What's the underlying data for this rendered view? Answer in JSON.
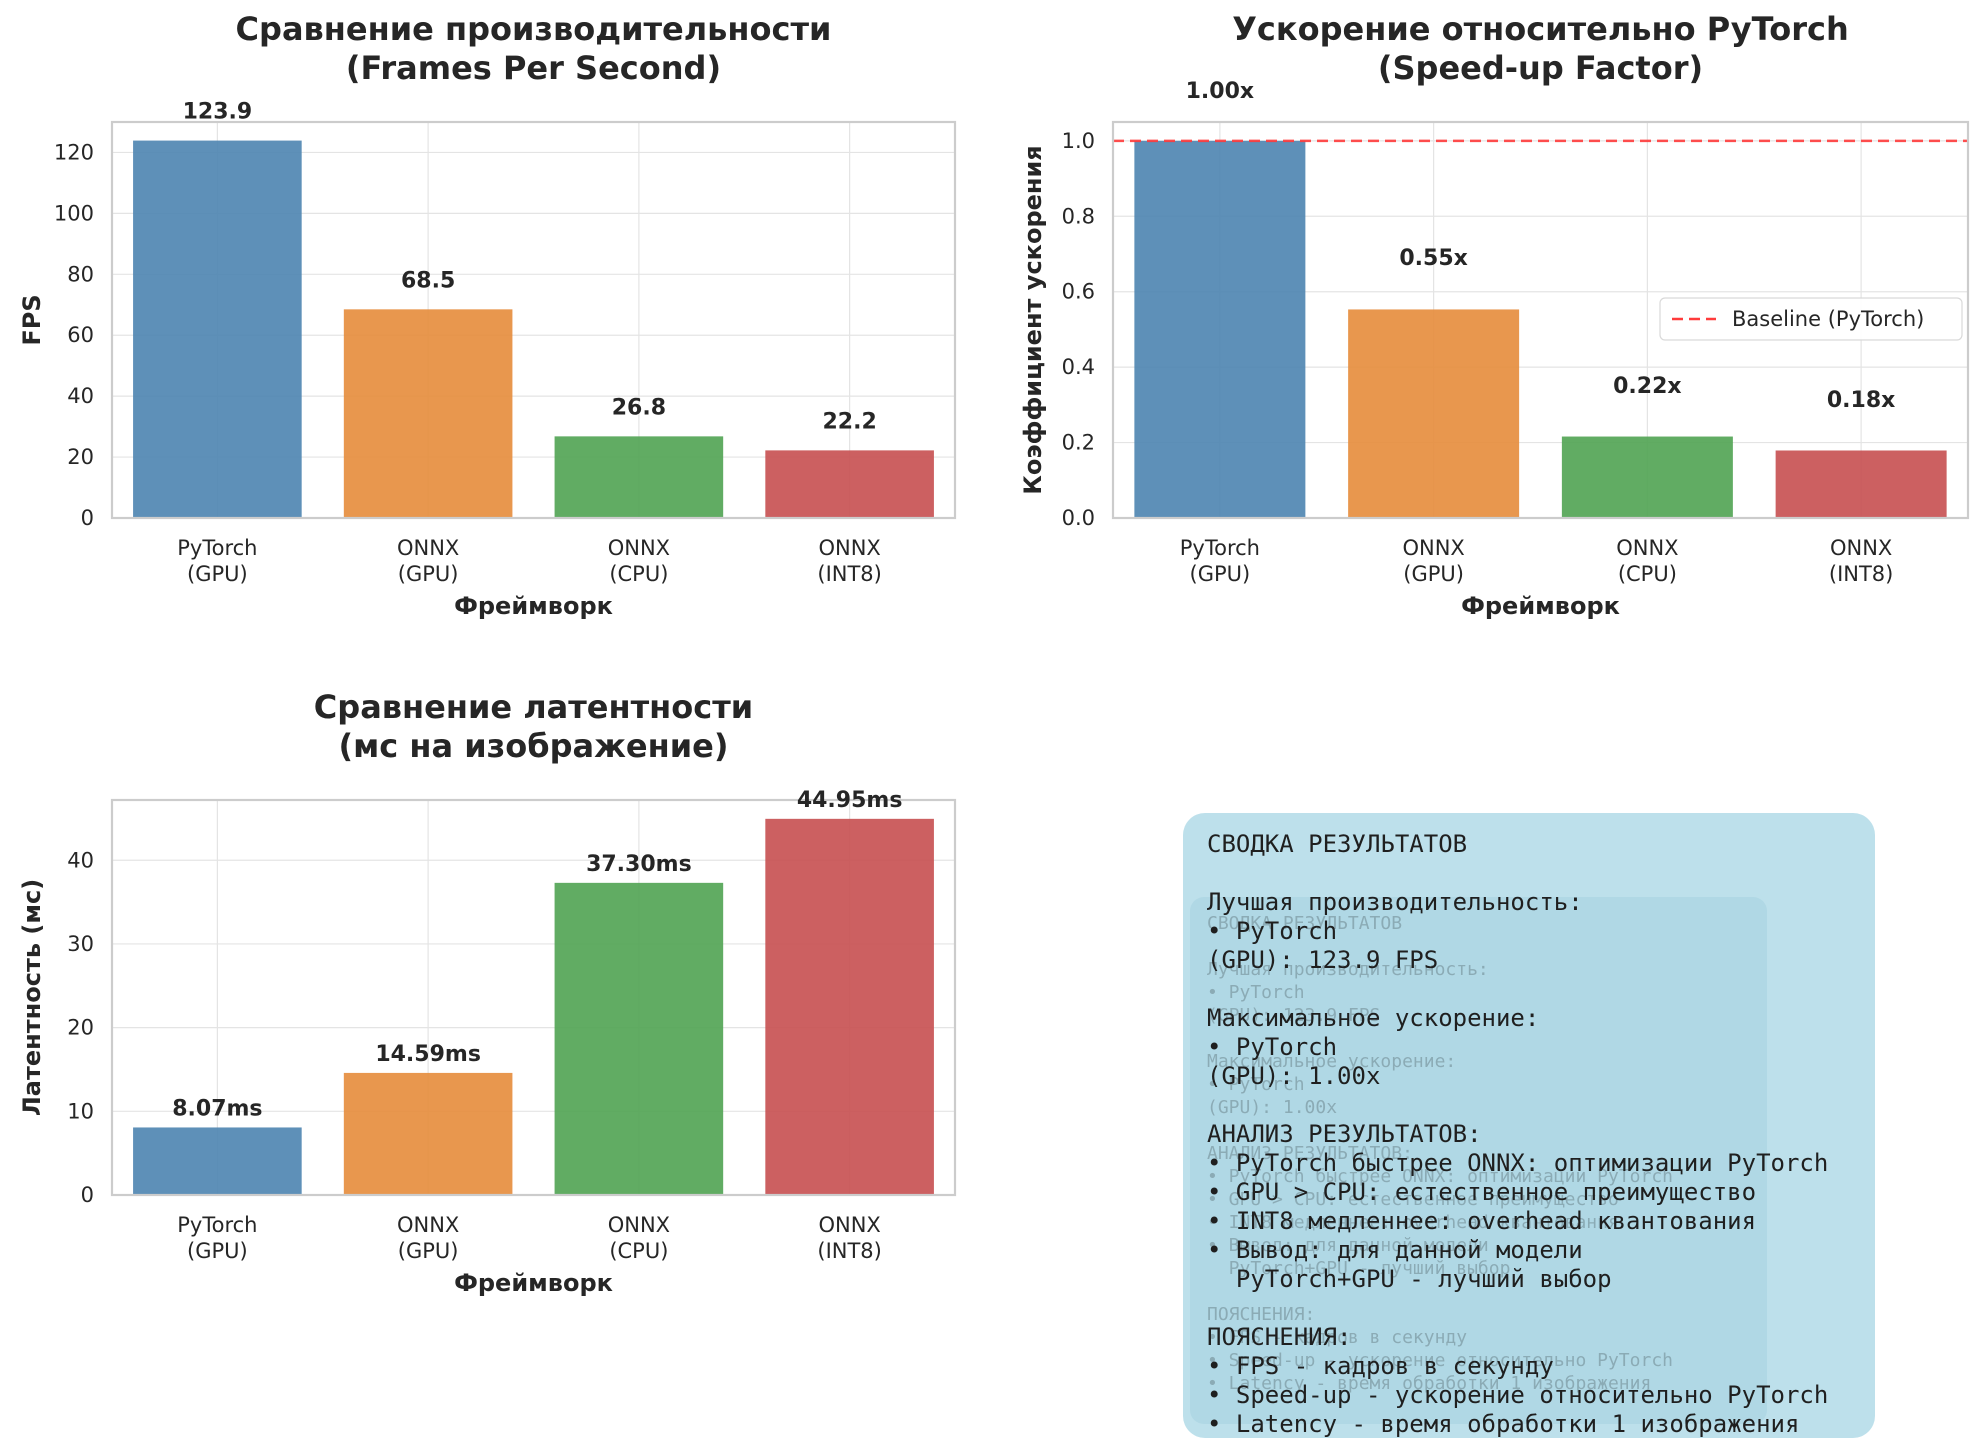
{
  "colors": {
    "series": [
      "#4c84b0",
      "#e58c3b",
      "#50a352",
      "#c64f50"
    ],
    "baseline": "#ff3b3b",
    "grid": "#e4e4e4",
    "axes": "#cccccc",
    "summary_bg": "#add8e6"
  },
  "chart_data": [
    {
      "type": "bar",
      "title": "Сравнение производительности\n(Frames Per Second)",
      "xlabel": "Фреймворк",
      "ylabel": "FPS",
      "categories": [
        "PyTorch\n(GPU)",
        "ONNX\n(GPU)",
        "ONNX\n(CPU)",
        "ONNX\n(INT8)"
      ],
      "values": [
        123.9,
        68.5,
        26.8,
        22.2
      ],
      "value_labels": [
        "123.9",
        "68.5",
        "26.8",
        "22.2"
      ],
      "ylim": [
        0,
        130
      ],
      "yticks": [
        0,
        20,
        40,
        60,
        80,
        100,
        120
      ],
      "grid": true
    },
    {
      "type": "bar",
      "title": "Ускорение относительно PyTorch\n(Speed-up Factor)",
      "xlabel": "Фреймворк",
      "ylabel": "Коэффициент ускорения",
      "categories": [
        "PyTorch\n(GPU)",
        "ONNX\n(GPU)",
        "ONNX\n(CPU)",
        "ONNX\n(INT8)"
      ],
      "values": [
        1.0,
        0.553,
        0.216,
        0.179
      ],
      "value_labels": [
        "1.00x",
        "0.55x",
        "0.22x",
        "0.18x"
      ],
      "ylim": [
        0,
        1.05
      ],
      "yticks": [
        0.0,
        0.2,
        0.4,
        0.6,
        0.8,
        1.0
      ],
      "yticklabels": [
        "0.0",
        "0.2",
        "0.4",
        "0.6",
        "0.8",
        "1.0"
      ],
      "baseline": {
        "value": 1.0,
        "label": "Baseline (PyTorch)"
      },
      "legend_position": "center-right",
      "grid": true
    },
    {
      "type": "bar",
      "title": "Сравнение латентности\n(мс на изображение)",
      "xlabel": "Фреймворк",
      "ylabel": "Латентность (мс)",
      "categories": [
        "PyTorch\n(GPU)",
        "ONNX\n(GPU)",
        "ONNX\n(CPU)",
        "ONNX\n(INT8)"
      ],
      "values": [
        8.07,
        14.59,
        37.3,
        44.95
      ],
      "value_labels": [
        "8.07ms",
        "14.59ms",
        "37.30ms",
        "44.95ms"
      ],
      "ylim": [
        0,
        47.2
      ],
      "yticks": [
        0,
        10,
        20,
        30,
        40
      ],
      "grid": true
    }
  ],
  "summary": {
    "text": "СВОДКА РЕЗУЛЬТАТОВ\n\nЛучшая производительность:\n• PyTorch\n(GPU): 123.9 FPS\n\nМаксимальное ускорение:\n• PyTorch\n(GPU): 1.00x\n\nАНАЛИЗ РЕЗУЛЬТАТОВ:\n• PyTorch быстрее ONNX: оптимизации PyTorch\n• GPU > CPU: естественное преимущество\n• INT8 медленнее: overhead квантования\n• Вывод: для данной модели\n  PyTorch+GPU - лучший выбор\n\nПОЯСНЕНИЯ:\n• FPS - кадров в секунду\n• Speed-up - ускорение относительно PyTorch\n• Latency - время обработки 1 изображения"
  }
}
